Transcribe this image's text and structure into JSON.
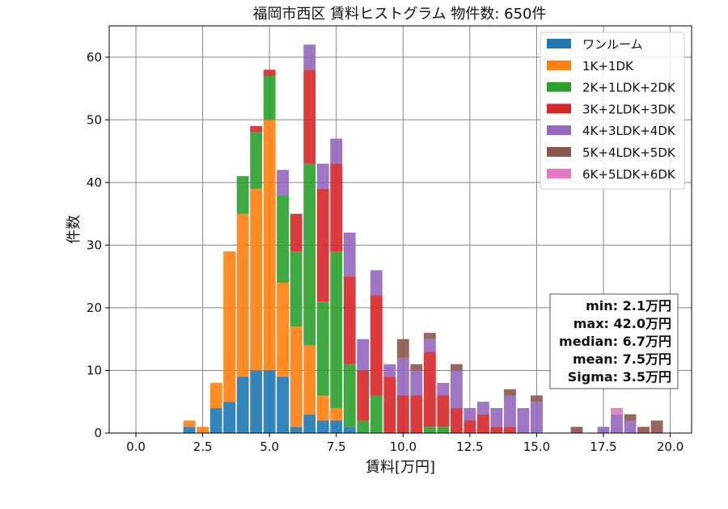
{
  "chart_data": {
    "type": "bar",
    "stacked": true,
    "title": "福岡市西区 賃料ヒストグラム 物件数: 650件",
    "xlabel": "賃料[万円]",
    "ylabel": "件数",
    "xlim": [
      -1.0,
      20.8
    ],
    "ylim": [
      0,
      65
    ],
    "xticks": [
      "0.0",
      "2.5",
      "5.0",
      "7.5",
      "10.0",
      "12.5",
      "15.0",
      "17.5",
      "20.0"
    ],
    "yticks": [
      "0",
      "10",
      "20",
      "30",
      "40",
      "50",
      "60"
    ],
    "grid": true,
    "legend_position": "top-right",
    "bin_width": 0.5,
    "bin_centers": [
      2.0,
      2.5,
      3.0,
      3.5,
      4.0,
      4.5,
      5.0,
      5.5,
      6.0,
      6.5,
      7.0,
      7.5,
      8.0,
      8.5,
      9.0,
      9.5,
      10.0,
      10.5,
      11.0,
      11.5,
      12.0,
      12.5,
      13.0,
      13.5,
      14.0,
      14.5,
      15.0,
      16.5,
      17.5,
      18.0,
      18.5,
      19.0,
      19.5
    ],
    "series": [
      {
        "name": "ワンルーム",
        "color": "#1f77b4",
        "values": [
          1,
          0,
          4,
          5,
          9,
          10,
          10,
          9,
          1,
          3,
          2,
          2,
          1,
          0,
          0,
          0,
          0,
          0,
          0,
          0,
          0,
          0,
          0,
          0,
          0,
          0,
          0,
          0,
          0,
          0,
          0,
          0,
          0
        ]
      },
      {
        "name": "1K+1DK",
        "color": "#ff7f0e",
        "values": [
          1,
          1,
          4,
          24,
          26,
          29,
          40,
          15,
          16,
          11,
          4,
          2,
          0,
          0,
          0,
          0,
          0,
          0,
          0,
          0,
          0,
          0,
          0,
          0,
          0,
          0,
          0,
          0,
          0,
          0,
          0,
          0,
          0
        ]
      },
      {
        "name": "2K+1LDK+2DK",
        "color": "#2ca02c",
        "values": [
          0,
          0,
          0,
          0,
          6,
          9,
          7,
          14,
          12,
          29,
          15,
          25,
          10,
          2,
          6,
          0,
          0,
          0,
          1,
          1,
          0,
          0,
          0,
          0,
          0,
          0,
          0,
          0,
          0,
          0,
          0,
          0,
          0
        ]
      },
      {
        "name": "3K+2LDK+3DK",
        "color": "#d62728",
        "values": [
          0,
          0,
          0,
          0,
          0,
          1,
          1,
          0,
          6,
          15,
          18,
          14,
          14,
          8,
          16,
          9,
          6,
          6,
          12,
          5,
          4,
          2,
          3,
          1,
          1,
          0,
          0,
          0,
          0,
          0,
          0,
          0,
          0
        ]
      },
      {
        "name": "4K+3LDK+4DK",
        "color": "#9467bd",
        "values": [
          0,
          0,
          0,
          0,
          0,
          0,
          0,
          4,
          0,
          4,
          4,
          4,
          7,
          5,
          4,
          2,
          6,
          4,
          2,
          2,
          6,
          2,
          2,
          3,
          5,
          4,
          5,
          0,
          1,
          3,
          2,
          0,
          0
        ]
      },
      {
        "name": "5K+4LDK+5DK",
        "color": "#8c564b",
        "values": [
          0,
          0,
          0,
          0,
          0,
          0,
          0,
          0,
          0,
          0,
          0,
          0,
          0,
          0,
          0,
          0,
          3,
          1,
          1,
          0,
          1,
          0,
          0,
          0,
          1,
          0,
          1,
          1,
          0,
          0,
          1,
          1,
          2
        ]
      },
      {
        "name": "6K+5LDK+6DK",
        "color": "#e377c2",
        "values": [
          0,
          0,
          0,
          0,
          0,
          0,
          0,
          0,
          0,
          0,
          0,
          0,
          0,
          0,
          0,
          0,
          0,
          0,
          0,
          0,
          0,
          0,
          0,
          0,
          0,
          0,
          0,
          0,
          0,
          1,
          0,
          0,
          0
        ]
      }
    ],
    "stats": {
      "min": "min: 2.1万円",
      "max": "max: 42.0万円",
      "median": "median: 6.7万円",
      "mean": "mean: 7.5万円",
      "sigma": "Sigma: 3.5万円"
    }
  }
}
